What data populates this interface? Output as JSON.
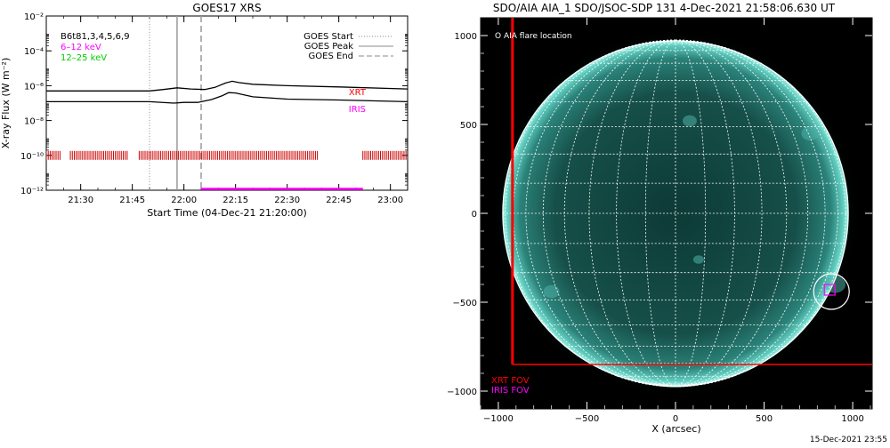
{
  "chart_data": [
    {
      "type": "line",
      "title": "GOES17 XRS",
      "xlabel": "Start Time (04-Dec-21 21:20:00)",
      "ylabel": "X-ray Flux (W m⁻²)",
      "xlim": [
        "21:20",
        "23:05"
      ],
      "ylim": [
        1e-12,
        0.01
      ],
      "y_scale": "log",
      "x_tick_labels": [
        "21:30",
        "21:45",
        "22:00",
        "22:15",
        "22:30",
        "22:45",
        "23:00"
      ],
      "y_tick_labels": [
        "10⁻¹²",
        "10⁻¹⁰",
        "10⁻⁸",
        "10⁻⁶",
        "10⁻⁴",
        "10⁻²"
      ],
      "legend_left": [
        {
          "text": "B6t81,3,4,5,6,9",
          "color": "#000000"
        },
        {
          "text": "6–12 keV",
          "color": "#ff00ff"
        },
        {
          "text": "12–25 keV",
          "color": "#00cc00"
        }
      ],
      "legend_right": [
        {
          "text": "GOES Start",
          "style": "dotted"
        },
        {
          "text": "GOES Peak",
          "style": "solid"
        },
        {
          "text": "GOES End",
          "style": "dashed"
        }
      ],
      "instrument_labels": [
        {
          "text": "XRT",
          "color": "#ff0000"
        },
        {
          "text": "IRIS",
          "color": "#ff00ff"
        }
      ],
      "vertical_markers": {
        "start": "21:50",
        "peak": "21:58",
        "end": "22:05"
      },
      "series": [
        {
          "color": "#000000",
          "x": [
            "21:20",
            "21:50",
            "21:54",
            "21:58",
            "22:02",
            "22:06",
            "22:09",
            "22:12",
            "22:14",
            "22:16",
            "22:20",
            "22:30",
            "22:45",
            "23:05"
          ],
          "values": [
            5e-07,
            5e-07,
            6e-07,
            7.5e-07,
            6.5e-07,
            6e-07,
            8e-07,
            1.4e-06,
            1.8e-06,
            1.5e-06,
            1.2e-06,
            1e-06,
            8.5e-07,
            6.5e-07
          ]
        },
        {
          "color": "#000000",
          "x": [
            "21:20",
            "21:50",
            "21:57",
            "22:00",
            "22:04",
            "22:08",
            "22:11",
            "22:13",
            "22:15",
            "22:20",
            "22:30",
            "22:45",
            "23:05"
          ],
          "values": [
            1.2e-07,
            1.2e-07,
            1e-07,
            1.1e-07,
            1.1e-07,
            1.6e-07,
            2.6e-07,
            4e-07,
            3.8e-07,
            2.3e-07,
            1.7e-07,
            1.5e-07,
            1.2e-07
          ]
        }
      ],
      "coverage": {
        "xrt_color": "#cc0000",
        "xrt_level": 1e-10,
        "xrt_intervals": [
          [
            "21:20",
            "21:24"
          ],
          [
            "21:27",
            "21:44"
          ],
          [
            "21:47",
            "22:39"
          ],
          [
            "22:52",
            "23:05"
          ]
        ],
        "iris_color": "#ff00ff",
        "iris_level": 1.2e-12,
        "iris_interval": [
          "22:05",
          "22:52"
        ]
      }
    },
    {
      "type": "image",
      "title": "SDO/AIA AIA_1 SDO/JSOC-SDP 131  4-Dec-2021 21:58:06.630 UT",
      "xlabel": "X (arcsec)",
      "xlim": [
        -1100,
        1110
      ],
      "ylim": [
        -1100,
        1100
      ],
      "x_tick_labels": [
        "−1000",
        "−500",
        "0",
        "500",
        "1000"
      ],
      "y_tick_labels": [
        "1000",
        "500",
        "0",
        "−500",
        "−1000"
      ],
      "legend": [
        {
          "text": "O AIA flare location",
          "color": "#ffffff"
        }
      ],
      "fov_labels": [
        {
          "text": "XRT FOV",
          "color": "#ff0000"
        },
        {
          "text": "IRIS FOV",
          "color": "#ff00ff"
        }
      ],
      "solar_radius_arcsec": 975,
      "flare_location": [
        880,
        -440
      ],
      "xrt_fov": {
        "x": [
          -920,
          1110
        ],
        "y": [
          -850,
          1100
        ],
        "color": "#ff0000"
      },
      "iris_fov": {
        "x": [
          840,
          900
        ],
        "y": [
          -460,
          -400
        ],
        "color": "#ff00ff"
      }
    }
  ],
  "footer": {
    "timestamp": "15-Dec-2021 23:55"
  }
}
